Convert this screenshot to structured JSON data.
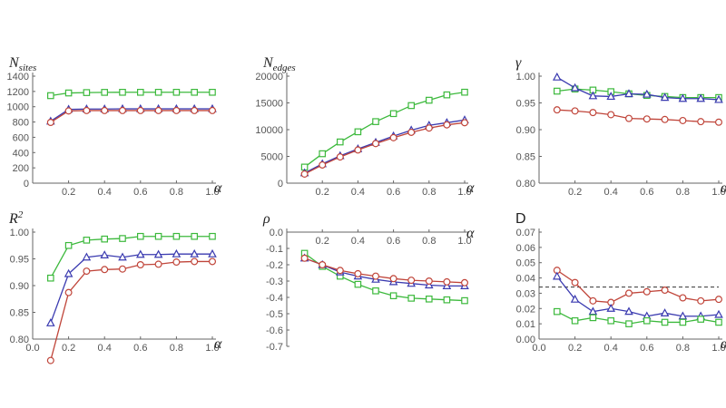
{
  "colors": {
    "green": "#3cb93c",
    "blue": "#3a3ab0",
    "red": "#c0453a",
    "axis": "#666666"
  },
  "chart_data": [
    {
      "type": "line",
      "ylabel_main": "N",
      "ylabel_sub": "sites",
      "xlabel": "α",
      "xlim": [
        0,
        1
      ],
      "ylim": [
        0,
        1400
      ],
      "xticks": [
        "0.2",
        "0.4",
        "0.6",
        "0.8",
        "1.0"
      ],
      "yticks": [
        "0",
        "200",
        "400",
        "600",
        "800",
        "1000",
        "1200",
        "1400"
      ],
      "x": [
        0.1,
        0.2,
        0.3,
        0.4,
        0.5,
        0.6,
        0.7,
        0.8,
        0.9,
        1.0
      ],
      "series": [
        {
          "name": "green",
          "marker": "square",
          "values": [
            1145,
            1180,
            1185,
            1188,
            1189,
            1189,
            1189,
            1189,
            1189,
            1189
          ]
        },
        {
          "name": "blue",
          "marker": "triangle",
          "values": [
            810,
            965,
            970,
            970,
            972,
            972,
            972,
            972,
            972,
            972
          ]
        },
        {
          "name": "red",
          "marker": "circle",
          "values": [
            795,
            945,
            950,
            950,
            950,
            950,
            950,
            950,
            950,
            950
          ]
        }
      ]
    },
    {
      "type": "line",
      "ylabel_main": "N",
      "ylabel_sub": "edges",
      "xlabel": "α",
      "xlim": [
        0,
        1
      ],
      "ylim": [
        0,
        20000
      ],
      "xticks": [
        "0.2",
        "0.4",
        "0.6",
        "0.8",
        "1.0"
      ],
      "yticks": [
        "0",
        "5000",
        "10000",
        "15000",
        "20000"
      ],
      "x": [
        0.1,
        0.2,
        0.3,
        0.4,
        0.5,
        0.6,
        0.7,
        0.8,
        0.9,
        1.0
      ],
      "series": [
        {
          "name": "green",
          "marker": "square",
          "values": [
            3000,
            5500,
            7700,
            9600,
            11500,
            13000,
            14500,
            15500,
            16500,
            17000
          ]
        },
        {
          "name": "blue",
          "marker": "triangle",
          "values": [
            1900,
            3600,
            5100,
            6400,
            7600,
            8800,
            9900,
            10800,
            11300,
            11800
          ]
        },
        {
          "name": "red",
          "marker": "circle",
          "values": [
            1700,
            3400,
            4900,
            6200,
            7400,
            8500,
            9500,
            10300,
            10900,
            11300
          ]
        }
      ]
    },
    {
      "type": "line",
      "ylabel_main": "γ",
      "ylabel_sub": "",
      "xlabel": "α",
      "xlim": [
        0,
        1
      ],
      "ylim": [
        0.8,
        1.0
      ],
      "xticks": [
        "0.2",
        "0.4",
        "0.6",
        "0.8",
        "1.0"
      ],
      "yticks": [
        "0.80",
        "0.85",
        "0.90",
        "0.95",
        "1.00"
      ],
      "x": [
        0.1,
        0.2,
        0.3,
        0.4,
        0.5,
        0.6,
        0.7,
        0.8,
        0.9,
        1.0
      ],
      "series": [
        {
          "name": "green",
          "marker": "square",
          "values": [
            0.972,
            0.976,
            0.974,
            0.971,
            0.967,
            0.964,
            0.962,
            0.96,
            0.96,
            0.96
          ]
        },
        {
          "name": "blue",
          "marker": "triangle",
          "values": [
            0.998,
            0.978,
            0.963,
            0.962,
            0.967,
            0.966,
            0.96,
            0.958,
            0.958,
            0.956
          ]
        },
        {
          "name": "red",
          "marker": "circle",
          "values": [
            0.937,
            0.935,
            0.932,
            0.928,
            0.921,
            0.92,
            0.919,
            0.917,
            0.915,
            0.914
          ]
        }
      ]
    },
    {
      "type": "line",
      "ylabel_main": "R",
      "ylabel_sub": "",
      "ylabel_sup": "2",
      "xlabel": "α",
      "xlim": [
        0,
        1
      ],
      "ylim": [
        0.8,
        1.0
      ],
      "xticks": [
        "0.0",
        "0.2",
        "0.4",
        "0.6",
        "0.8",
        "1.0"
      ],
      "yticks": [
        "0.80",
        "0.85",
        "0.90",
        "0.95",
        "1.00"
      ],
      "x": [
        0.1,
        0.2,
        0.3,
        0.4,
        0.5,
        0.6,
        0.7,
        0.8,
        0.9,
        1.0
      ],
      "series": [
        {
          "name": "green",
          "marker": "square",
          "values": [
            0.914,
            0.975,
            0.985,
            0.987,
            0.988,
            0.992,
            0.992,
            0.992,
            0.992,
            0.992
          ]
        },
        {
          "name": "blue",
          "marker": "triangle",
          "values": [
            0.83,
            0.922,
            0.953,
            0.957,
            0.953,
            0.958,
            0.958,
            0.959,
            0.959,
            0.959
          ]
        },
        {
          "name": "red",
          "marker": "circle",
          "values": [
            0.76,
            0.887,
            0.927,
            0.93,
            0.931,
            0.939,
            0.94,
            0.944,
            0.945,
            0.945
          ]
        }
      ]
    },
    {
      "type": "line",
      "ylabel_main": "ρ",
      "ylabel_sub": "",
      "xlabel": "α",
      "xlim": [
        0,
        1
      ],
      "ylim": [
        -0.7,
        0.0
      ],
      "xaxis_at_top": true,
      "xticks": [
        "0.2",
        "0.4",
        "0.6",
        "0.8",
        "1.0"
      ],
      "yticks": [
        "0.0",
        "-0.1",
        "-0.2",
        "-0.3",
        "-0.4",
        "-0.5",
        "-0.6",
        "-0.7"
      ],
      "x": [
        0.1,
        0.2,
        0.3,
        0.4,
        0.5,
        0.6,
        0.7,
        0.8,
        0.9,
        1.0
      ],
      "series": [
        {
          "name": "green",
          "marker": "square",
          "values": [
            -0.13,
            -0.21,
            -0.27,
            -0.32,
            -0.36,
            -0.39,
            -0.405,
            -0.41,
            -0.415,
            -0.42
          ]
        },
        {
          "name": "blue",
          "marker": "triangle",
          "values": [
            -0.16,
            -0.2,
            -0.245,
            -0.27,
            -0.29,
            -0.305,
            -0.315,
            -0.325,
            -0.33,
            -0.33
          ]
        },
        {
          "name": "red",
          "marker": "circle",
          "values": [
            -0.16,
            -0.2,
            -0.235,
            -0.255,
            -0.27,
            -0.285,
            -0.295,
            -0.3,
            -0.305,
            -0.31
          ]
        }
      ]
    },
    {
      "type": "line",
      "ylabel_main": "D",
      "ylabel_sub": "",
      "xlabel": "α",
      "upright": true,
      "xlim": [
        0,
        1
      ],
      "ylim": [
        0,
        0.07
      ],
      "xticks": [
        "0.0",
        "0.2",
        "0.4",
        "0.6",
        "0.8",
        "1.0"
      ],
      "yticks": [
        "0.00",
        "0.01",
        "0.02",
        "0.03",
        "0.04",
        "0.05",
        "0.06",
        "0.07"
      ],
      "reference_line": 0.034,
      "x": [
        0.1,
        0.2,
        0.3,
        0.4,
        0.5,
        0.6,
        0.7,
        0.8,
        0.9,
        1.0
      ],
      "series": [
        {
          "name": "red",
          "marker": "circle",
          "values": [
            0.045,
            0.037,
            0.025,
            0.024,
            0.03,
            0.031,
            0.032,
            0.027,
            0.025,
            0.026
          ]
        },
        {
          "name": "blue",
          "marker": "triangle",
          "values": [
            0.041,
            0.026,
            0.018,
            0.02,
            0.018,
            0.015,
            0.017,
            0.015,
            0.015,
            0.016
          ]
        },
        {
          "name": "green",
          "marker": "square",
          "values": [
            0.018,
            0.012,
            0.014,
            0.012,
            0.01,
            0.012,
            0.011,
            0.011,
            0.013,
            0.011
          ]
        }
      ]
    }
  ]
}
